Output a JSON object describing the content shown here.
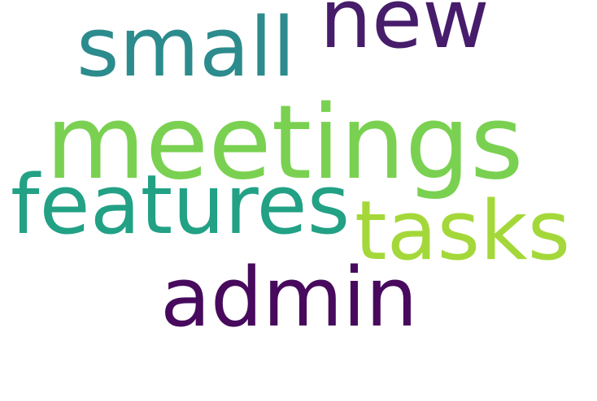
{
  "words": [
    {
      "text": "meetings",
      "color": "#7ad151"
    },
    {
      "text": "small",
      "color": "#2c8b8c"
    },
    {
      "text": "new",
      "color": "#461c6b"
    },
    {
      "text": "features",
      "color": "#22a185"
    },
    {
      "text": "tasks",
      "color": "#a4d83a"
    },
    {
      "text": "admin",
      "color": "#470a5d"
    }
  ]
}
